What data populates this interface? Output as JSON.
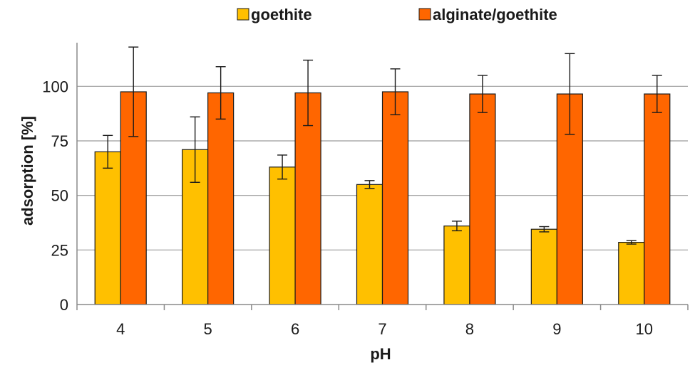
{
  "chart_data": {
    "type": "bar",
    "title": "",
    "xlabel": "pH",
    "ylabel": "adsorption   [%]",
    "categories": [
      "4",
      "5",
      "6",
      "7",
      "8",
      "9",
      "10"
    ],
    "ylim": [
      0,
      120
    ],
    "yticks": [
      "0",
      "25",
      "50",
      "75",
      "100"
    ],
    "ytick_values": [
      0,
      25,
      50,
      75,
      100
    ],
    "grid": true,
    "legend_position": "top",
    "series": [
      {
        "name": "goethite",
        "color": "#FFC000",
        "values": [
          70,
          71,
          63,
          55,
          36,
          34.5,
          28.5
        ],
        "errors": [
          7.5,
          15,
          5.5,
          1.8,
          2.2,
          1.2,
          0.8
        ]
      },
      {
        "name": "alginate/goethite",
        "color": "#FF6600",
        "values": [
          97.5,
          97,
          97,
          97.5,
          96.5,
          96.5,
          96.5
        ],
        "errors": [
          20.5,
          12,
          15,
          10.5,
          8.5,
          18.5,
          8.5
        ]
      }
    ]
  }
}
